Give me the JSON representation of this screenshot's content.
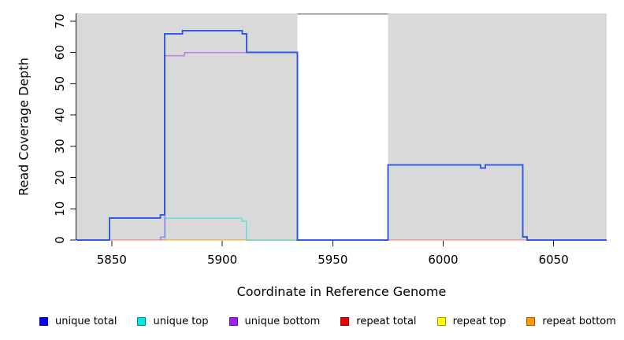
{
  "chart_data": {
    "type": "line",
    "title": "",
    "xlabel": "Coordinate in Reference Genome",
    "ylabel": "Read Coverage Depth",
    "xlim": [
      5834,
      6074
    ],
    "ylim": [
      0,
      72.5
    ],
    "xticks": [
      5850,
      5900,
      5950,
      6000,
      6050
    ],
    "yticks": [
      0,
      10,
      20,
      30,
      40,
      50,
      60,
      70
    ],
    "grid": false,
    "panel_bg": "#d9d9d9",
    "highlight_band": {
      "x0": 5934,
      "x1": 5975,
      "color": "#ffffff",
      "top_border": "#8c8c8c"
    },
    "legend_position": "bottom",
    "series": [
      {
        "name": "repeat total",
        "key": "repeat-total",
        "color": "#ff0000",
        "opacity": 0.5,
        "width": 1.4,
        "points": [
          [
            5834,
            0
          ],
          [
            6074,
            0
          ]
        ]
      },
      {
        "name": "repeat top",
        "key": "repeat-top",
        "color": "#ffff00",
        "opacity": 0.6,
        "width": 1.4,
        "points": [
          [
            5874,
            0
          ],
          [
            5934,
            0
          ]
        ]
      },
      {
        "name": "repeat bottom",
        "key": "repeat-bottom",
        "color": "#ff9900",
        "opacity": 0.8,
        "width": 1.4,
        "points": [
          [
            5874,
            0
          ],
          [
            5934,
            0
          ]
        ]
      },
      {
        "name": "unique top",
        "key": "unique-top",
        "color": "#00e5e5",
        "opacity": 0.55,
        "width": 1.5,
        "points": [
          [
            5874,
            0
          ],
          [
            5874,
            7
          ],
          [
            5909,
            7
          ],
          [
            5909,
            6
          ],
          [
            5911,
            6
          ],
          [
            5911,
            0
          ],
          [
            5934,
            0
          ]
        ]
      },
      {
        "name": "unique bottom",
        "key": "unique-bottom",
        "color": "#a020f0",
        "opacity": 0.5,
        "width": 1.5,
        "points": [
          [
            5872,
            0
          ],
          [
            5872,
            1
          ],
          [
            5874,
            1
          ],
          [
            5874,
            59
          ],
          [
            5883,
            59
          ],
          [
            5883,
            60
          ],
          [
            5934,
            60
          ],
          [
            5934,
            0
          ]
        ]
      },
      {
        "name": "unique total",
        "key": "unique-total",
        "color": "#2050ee",
        "opacity": 0.9,
        "width": 2,
        "points": [
          [
            5834,
            0
          ],
          [
            5849,
            0
          ],
          [
            5849,
            7
          ],
          [
            5872,
            7
          ],
          [
            5872,
            8
          ],
          [
            5874,
            8
          ],
          [
            5874,
            66
          ],
          [
            5882,
            66
          ],
          [
            5882,
            67
          ],
          [
            5909,
            67
          ],
          [
            5909,
            66
          ],
          [
            5911,
            66
          ],
          [
            5911,
            60
          ],
          [
            5934,
            60
          ],
          [
            5934,
            0
          ],
          [
            5975,
            0
          ],
          [
            5975,
            24
          ],
          [
            6017,
            24
          ],
          [
            6017,
            23
          ],
          [
            6019,
            23
          ],
          [
            6019,
            24
          ],
          [
            6036,
            24
          ],
          [
            6036,
            1
          ],
          [
            6038,
            1
          ],
          [
            6038,
            0
          ],
          [
            6074,
            0
          ]
        ]
      }
    ],
    "legend": [
      {
        "label": "unique total",
        "color": "#0000ee"
      },
      {
        "label": "unique top",
        "color": "#00e5e5"
      },
      {
        "label": "unique bottom",
        "color": "#a020f0"
      },
      {
        "label": "repeat total",
        "color": "#ee0000"
      },
      {
        "label": "repeat top",
        "color": "#ffff00"
      },
      {
        "label": "repeat bottom",
        "color": "#ff9900"
      }
    ]
  }
}
